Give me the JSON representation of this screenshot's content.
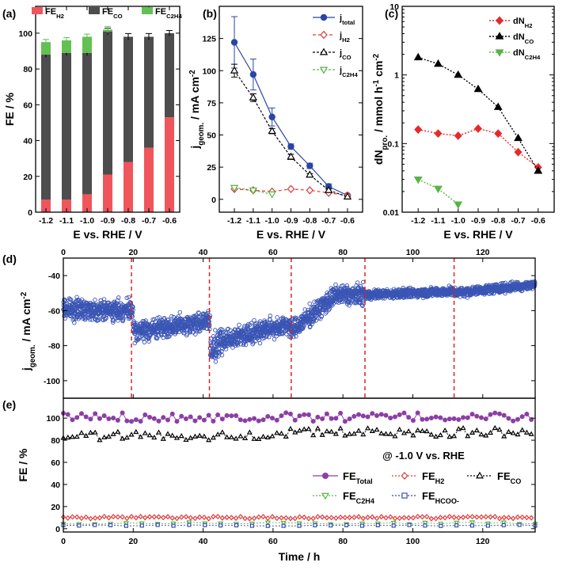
{
  "panel_labels": {
    "a": "(a)",
    "b": "(b)",
    "c": "(c)",
    "d": "(d)",
    "e": "(e)"
  },
  "chart_data": [
    {
      "id": "a",
      "type": "bar",
      "stacked": true,
      "categories": [
        "-1.2",
        "-1.1",
        "-1.0",
        "-0.9",
        "-0.8",
        "-0.7",
        "-0.6"
      ],
      "series": [
        {
          "name": "FE_H2",
          "label": "FE",
          "sub": "H2",
          "color": "#f0555c",
          "values": [
            7,
            7,
            10,
            21,
            28,
            36,
            53
          ]
        },
        {
          "name": "FE_CO",
          "label": "FE",
          "sub": "CO",
          "color": "#4d4d4d",
          "values": [
            81,
            82,
            79,
            80,
            70,
            62,
            47
          ]
        },
        {
          "name": "FE_C2H4",
          "label": "FE",
          "sub": "C2H4",
          "color": "#63c052",
          "values": [
            7,
            7,
            9,
            1,
            0,
            0,
            0
          ]
        }
      ],
      "error_bars": [
        1.5,
        1.5,
        1.5,
        1.8,
        1.8,
        1.8,
        1.5
      ],
      "xlabel": "E vs. RHE / V",
      "ylabel": "FE / %",
      "ylim": [
        0,
        115
      ],
      "yticks": [
        0,
        20,
        40,
        60,
        80,
        100
      ]
    },
    {
      "id": "b",
      "type": "line",
      "categories": [
        "-1.2",
        "-1.1",
        "-1.0",
        "-0.9",
        "-0.8",
        "-0.7",
        "-0.6"
      ],
      "series": [
        {
          "name": "j_total",
          "label": "j",
          "sub": "total",
          "color": "#2b45a6",
          "marker": "circle-filled",
          "dash": "",
          "values": [
            122,
            97,
            64,
            41,
            26,
            10,
            3
          ],
          "errors": [
            20,
            12,
            7,
            2,
            2,
            2,
            1
          ]
        },
        {
          "name": "j_H2",
          "label": "j",
          "sub": "H2",
          "color": "#e03a3a",
          "marker": "diamond-open",
          "dash": "4,3",
          "values": [
            8,
            7,
            6,
            8,
            7,
            5,
            3
          ],
          "errors": null
        },
        {
          "name": "j_CO",
          "label": "j",
          "sub": "CO",
          "color": "#000000",
          "marker": "triangle-open",
          "dash": "3,2",
          "values": [
            100,
            79,
            53,
            33,
            19,
            7,
            2
          ],
          "errors": [
            5,
            3,
            2,
            2,
            1,
            1,
            0
          ]
        },
        {
          "name": "j_C2H4",
          "label": "j",
          "sub": "C2H4",
          "color": "#56b446",
          "marker": "triangle-down-open",
          "dash": "3,2",
          "values": [
            9,
            7,
            4,
            null,
            null,
            null,
            null
          ],
          "errors": null
        }
      ],
      "xlabel": "E vs. RHE / V",
      "ylabel": "j_geom. / mA cm-2",
      "ylabel_parts": {
        "main": "j",
        "sub": "geom.",
        "rest": " / mA cm",
        "sup": "-2"
      },
      "ylim": [
        -10,
        150
      ],
      "yticks": [
        0,
        25,
        50,
        75,
        100,
        125
      ]
    },
    {
      "id": "c",
      "type": "line",
      "yscale": "log",
      "categories": [
        "-1.2",
        "-1.1",
        "-1.0",
        "-0.9",
        "-0.8",
        "-0.7",
        "-0.6"
      ],
      "series": [
        {
          "name": "dN_H2",
          "label": "dN",
          "sub": "H2",
          "color": "#e8282b",
          "marker": "diamond-filled",
          "dash": "2,2",
          "values": [
            0.16,
            0.14,
            0.13,
            0.165,
            0.14,
            0.075,
            0.045
          ]
        },
        {
          "name": "dN_CO",
          "label": "dN",
          "sub": "CO",
          "color": "#000000",
          "marker": "triangle-filled",
          "dash": "2,2",
          "values": [
            1.8,
            1.45,
            1.0,
            0.62,
            0.34,
            0.12,
            0.04
          ]
        },
        {
          "name": "dN_C2H4",
          "label": "dN",
          "sub": "C2H4",
          "color": "#56b446",
          "marker": "triangle-down-filled",
          "dash": "2,2",
          "values": [
            0.03,
            0.022,
            0.013,
            null,
            null,
            null,
            null
          ]
        }
      ],
      "xlabel": "E vs. RHE / V",
      "ylabel_parts": {
        "main": "dN",
        "sub": "pro.",
        "rest": " / mmol h",
        "sup1": "-1",
        "mid": " cm",
        "sup2": "-2"
      },
      "ylim": [
        0.01,
        10
      ],
      "yticks": [
        0.01,
        0.1,
        1,
        10
      ],
      "ytick_labels": [
        "0.01",
        "0.1",
        "1",
        "10"
      ]
    },
    {
      "id": "d",
      "type": "scatter",
      "xlim": [
        0,
        135
      ],
      "xticks": [
        0,
        20,
        40,
        60,
        80,
        100,
        120
      ],
      "ylim": [
        -110,
        -30
      ],
      "yticks": [
        -100,
        -80,
        -60,
        -40
      ],
      "color": "#3a55b4",
      "segments": [
        {
          "t0": 0,
          "t1": 20,
          "mean_start": -59,
          "mean_end": -60
        },
        {
          "t0": 20,
          "t1": 42,
          "mean_start": -72,
          "mean_end": -66
        },
        {
          "t0": 42,
          "t1": 65,
          "mean_start": -84,
          "mean_end": -68
        },
        {
          "t0": 65,
          "t1": 86,
          "mean_start": -72,
          "mean_end": -51
        },
        {
          "t0": 86,
          "t1": 112,
          "mean_start": -51,
          "mean_end": -49
        },
        {
          "t0": 112,
          "t1": 135,
          "mean_start": -50,
          "mean_end": -45
        }
      ],
      "markers_at": [
        19.5,
        41.8,
        65.2,
        86.3,
        111.8
      ],
      "ylabel_parts": {
        "main": "j",
        "sub": "geom.",
        "rest": " / mA cm",
        "sup": "-2"
      }
    },
    {
      "id": "e",
      "type": "scatter",
      "xlim": [
        0,
        135
      ],
      "xticks": [
        0,
        20,
        40,
        60,
        80,
        100,
        120
      ],
      "ylim": [
        -3,
        118
      ],
      "yticks": [
        0,
        20,
        40,
        60,
        80,
        100
      ],
      "xlabel": "Time / h",
      "ylabel": "FE / %",
      "annotation": "@ -1.0 V vs. RHE",
      "series": [
        {
          "name": "FE_Total",
          "label": "FE",
          "sub": "Total",
          "color": "#8c3ea6",
          "marker": "circle-filled",
          "dash": "",
          "mean": 101,
          "amp": 4
        },
        {
          "name": "FE_H2",
          "label": "FE",
          "sub": "H2",
          "color": "#e03a3a",
          "marker": "diamond-open",
          "dash": "2,2",
          "mean": 10,
          "amp": 1
        },
        {
          "name": "FE_CO",
          "label": "FE",
          "sub": "CO",
          "color": "#000000",
          "marker": "triangle-open",
          "dash": "2,2",
          "mean": 84,
          "amp": 4
        },
        {
          "name": "FE_C2H4",
          "label": "FE",
          "sub": "C2H4",
          "color": "#56b446",
          "marker": "triangle-down-open",
          "dash": "2,2",
          "mean": 5,
          "amp": 1
        },
        {
          "name": "FE_HCOO-",
          "label": "FE",
          "sub": "HCOO-",
          "color": "#2b45a6",
          "marker": "square-open",
          "dash": "2,2",
          "mean": 3,
          "amp": 0.5
        }
      ]
    }
  ]
}
